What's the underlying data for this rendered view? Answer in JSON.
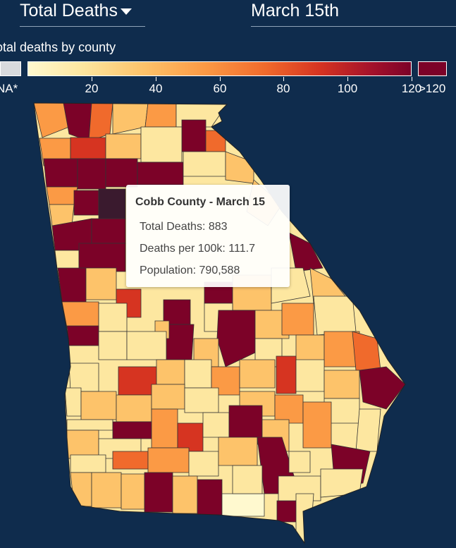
{
  "controls": {
    "metric_label": "Total Deaths",
    "date_label": "March 15th"
  },
  "legend": {
    "title": "otal deaths by county",
    "na_label": "NA*",
    "ticks": [
      {
        "label": "20",
        "value": 20
      },
      {
        "label": "40",
        "value": 40
      },
      {
        "label": "60",
        "value": 60
      },
      {
        "label": "80",
        "value": 80
      },
      {
        "label": "100",
        "value": 100
      },
      {
        "label": "120",
        "value": 120
      }
    ],
    "scale_min": 0,
    "scale_max": 120,
    "over_label": ">120",
    "colors": {
      "na": "#d8dadd",
      "over": "#7c0228",
      "ramp": [
        "#fff9cf",
        "#fde7a0",
        "#fdc36a",
        "#fb9a45",
        "#f06a2c",
        "#d63421",
        "#a3112b",
        "#7c0228"
      ]
    }
  },
  "tooltip": {
    "title": "Cobb County - March 15",
    "rows": [
      {
        "label": "Total Deaths",
        "value": "883"
      },
      {
        "label": "Deaths per 100k",
        "value": "111.7"
      },
      {
        "label": "Population",
        "value": "790,588"
      }
    ]
  },
  "map": {
    "region": "Georgia",
    "highlighted_county": "Cobb",
    "highlight_color": "#3a1a2e",
    "background": "#0f2c4d"
  }
}
